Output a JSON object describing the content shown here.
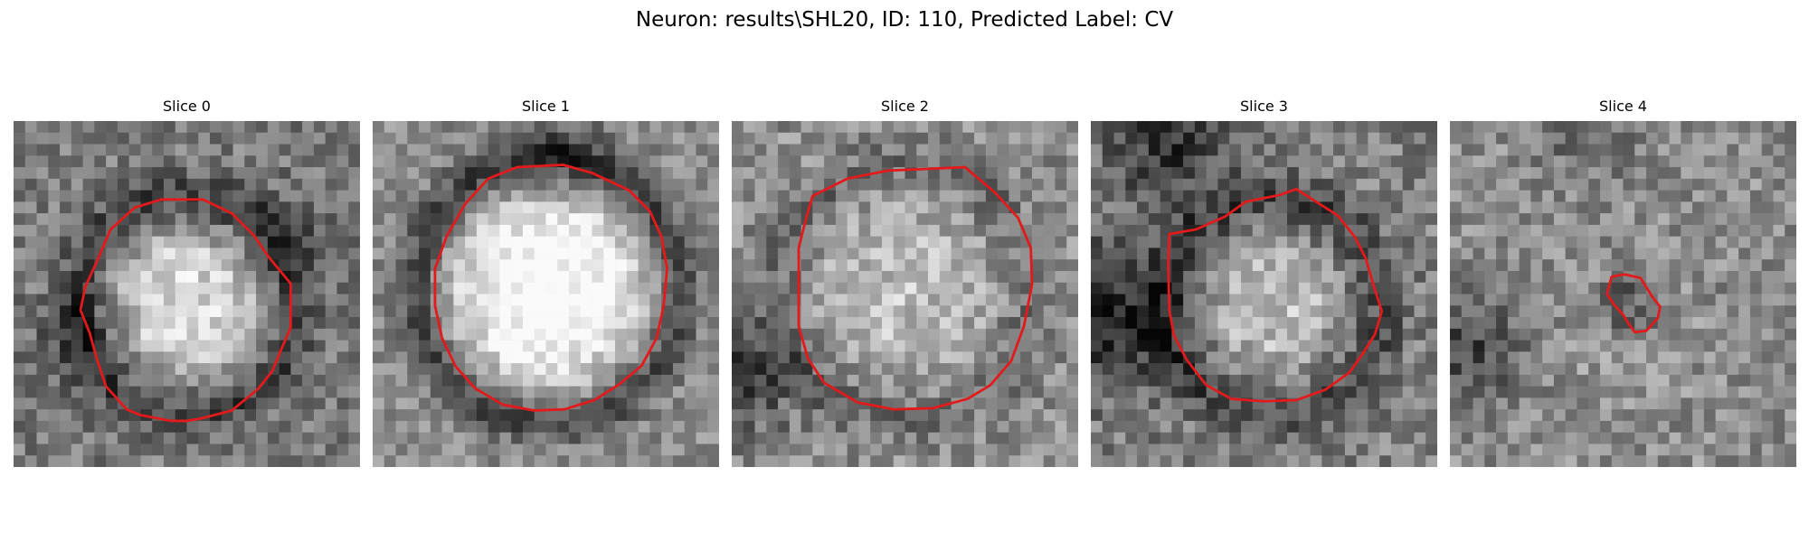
{
  "figure": {
    "title": "Neuron: results\\SHL20, ID: 110, Predicted Label: CV"
  },
  "panels": [
    {
      "title": "Slice 0",
      "image": "grayscale-pixel-patch",
      "contour_color": "#e31a1c"
    },
    {
      "title": "Slice 1",
      "image": "grayscale-pixel-patch",
      "contour_color": "#e31a1c"
    },
    {
      "title": "Slice 2",
      "image": "grayscale-pixel-patch",
      "contour_color": "#e31a1c"
    },
    {
      "title": "Slice 3",
      "image": "grayscale-pixel-patch",
      "contour_color": "#e31a1c"
    },
    {
      "title": "Slice 4",
      "image": "grayscale-pixel-patch",
      "contour_color": "#e31a1c"
    }
  ]
}
